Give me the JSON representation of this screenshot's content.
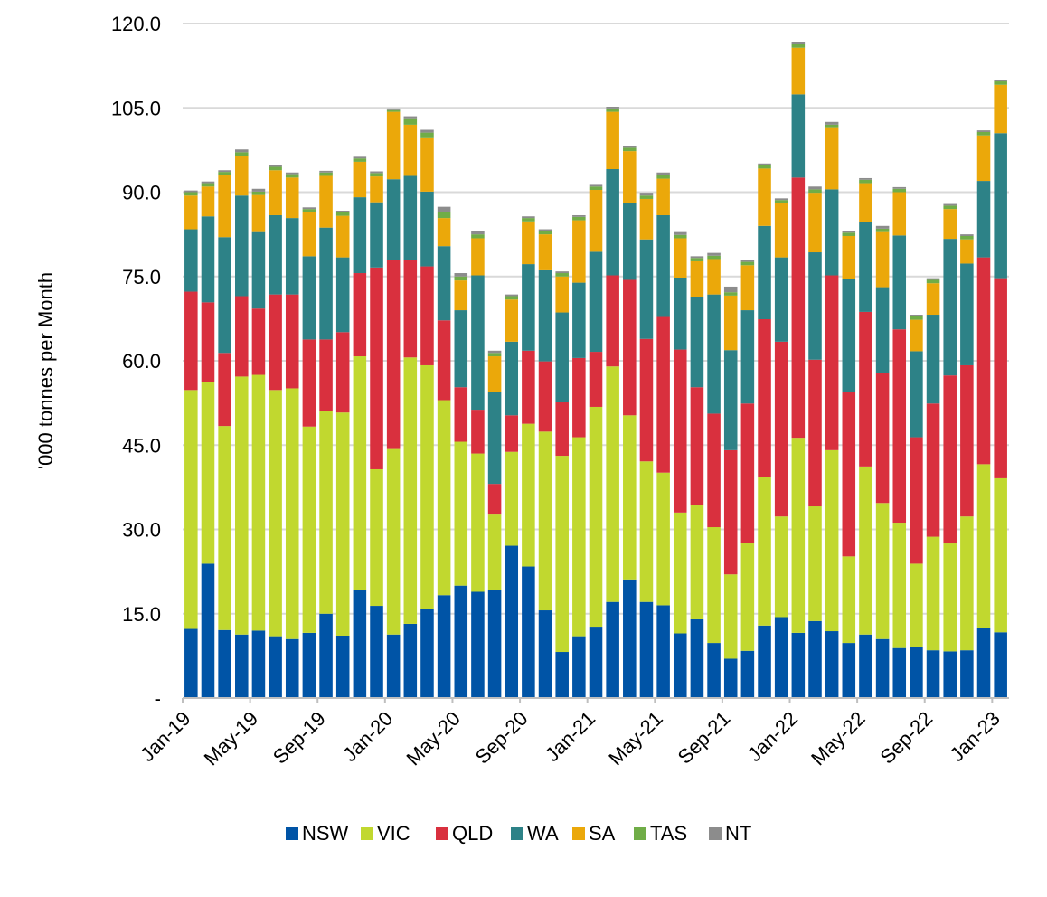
{
  "chart_data": {
    "type": "bar",
    "stacked": true,
    "title": "",
    "xlabel": "",
    "ylabel": "'000 tonnes per Month",
    "ylim": [
      0,
      120
    ],
    "y_ticks": [
      0,
      15,
      30,
      45,
      60,
      75,
      90,
      105,
      120
    ],
    "y_tick_labels": [
      "-",
      "15.0",
      "30.0",
      "45.0",
      "60.0",
      "75.0",
      "90.0",
      "105.0",
      "120.0"
    ],
    "grid": "horizontal",
    "legend_position": "bottom",
    "categories": [
      "Jan-19",
      "Feb-19",
      "Mar-19",
      "Apr-19",
      "May-19",
      "Jun-19",
      "Jul-19",
      "Aug-19",
      "Sep-19",
      "Oct-19",
      "Nov-19",
      "Dec-19",
      "Jan-20",
      "Feb-20",
      "Mar-20",
      "Apr-20",
      "May-20",
      "Jun-20",
      "Jul-20",
      "Aug-20",
      "Sep-20",
      "Oct-20",
      "Nov-20",
      "Dec-20",
      "Jan-21",
      "Feb-21",
      "Mar-21",
      "Apr-21",
      "May-21",
      "Jun-21",
      "Jul-21",
      "Aug-21",
      "Sep-21",
      "Oct-21",
      "Nov-21",
      "Dec-21",
      "Jan-22",
      "Feb-22",
      "Mar-22",
      "Apr-22",
      "May-22",
      "Jun-22",
      "Jul-22",
      "Aug-22",
      "Sep-22",
      "Oct-22",
      "Nov-22",
      "Dec-22",
      "Jan-23"
    ],
    "x_tick_labels": [
      "Jan-19",
      "May-19",
      "Sep-19",
      "Jan-20",
      "May-20",
      "Sep-20",
      "Jan-21",
      "May-21",
      "Sep-21",
      "Jan-22",
      "May-22",
      "Sep-22",
      "Jan-23"
    ],
    "series": [
      {
        "name": "NSW",
        "color": "#0054A6",
        "values": [
          12.3,
          23.9,
          12.1,
          11.3,
          12.0,
          11.0,
          10.5,
          11.6,
          15.0,
          11.1,
          19.2,
          16.4,
          11.3,
          13.2,
          15.9,
          18.3,
          20.0,
          18.9,
          19.2,
          27.1,
          23.4,
          15.6,
          8.2,
          11.0,
          12.7,
          17.1,
          21.1,
          17.1,
          16.5,
          11.5,
          14.0,
          9.8,
          7.0,
          8.4,
          12.9,
          14.4,
          11.6,
          13.7,
          11.9,
          9.8,
          11.3,
          10.5,
          8.9,
          9.1,
          8.5,
          8.3,
          8.5,
          12.5,
          11.7
        ]
      },
      {
        "name": "VIC",
        "color": "#C1D82F",
        "values": [
          42.5,
          32.4,
          36.3,
          45.9,
          45.5,
          43.8,
          44.6,
          36.7,
          36.0,
          39.7,
          41.6,
          24.3,
          33.0,
          47.4,
          43.3,
          34.7,
          25.6,
          24.6,
          13.6,
          16.7,
          25.4,
          31.8,
          34.9,
          35.4,
          39.1,
          41.9,
          29.2,
          25.0,
          23.6,
          21.5,
          20.3,
          20.6,
          15.0,
          19.2,
          26.4,
          17.9,
          34.7,
          20.4,
          32.2,
          15.4,
          29.9,
          24.2,
          22.3,
          14.8,
          20.2,
          19.2,
          23.8,
          29.1,
          27.4
        ]
      },
      {
        "name": "QLD",
        "color": "#D9303E",
        "values": [
          17.5,
          14.1,
          13.0,
          14.3,
          11.8,
          17.0,
          16.7,
          15.5,
          12.8,
          14.3,
          14.8,
          35.9,
          33.6,
          17.3,
          17.6,
          14.2,
          9.7,
          7.8,
          5.3,
          6.5,
          13.0,
          12.5,
          9.5,
          14.1,
          9.8,
          16.2,
          24.1,
          21.8,
          27.7,
          29.0,
          21.0,
          20.2,
          22.1,
          24.8,
          28.1,
          31.1,
          46.3,
          26.1,
          31.1,
          29.2,
          27.5,
          23.2,
          34.4,
          22.5,
          23.7,
          29.9,
          26.9,
          36.8,
          35.6
        ]
      },
      {
        "name": "WA",
        "color": "#2D8287",
        "values": [
          11.1,
          15.3,
          20.6,
          17.9,
          13.6,
          14.1,
          13.6,
          14.8,
          19.9,
          13.3,
          13.5,
          11.6,
          14.4,
          15.0,
          13.3,
          13.2,
          13.7,
          23.9,
          16.4,
          13.1,
          15.4,
          16.2,
          16.0,
          13.4,
          17.8,
          18.9,
          13.7,
          17.7,
          18.1,
          12.8,
          16.1,
          21.2,
          17.8,
          16.6,
          16.6,
          15.0,
          14.8,
          19.1,
          15.3,
          20.2,
          16.0,
          15.2,
          16.7,
          15.3,
          15.8,
          24.3,
          18.1,
          13.6,
          25.8
        ]
      },
      {
        "name": "SA",
        "color": "#EBA80A",
        "values": [
          6.0,
          5.3,
          11.0,
          7.0,
          6.6,
          8.0,
          7.2,
          7.8,
          9.2,
          7.4,
          6.3,
          4.6,
          12.0,
          9.1,
          9.5,
          5.0,
          5.3,
          6.6,
          6.3,
          7.5,
          7.6,
          6.4,
          6.4,
          11.1,
          11.0,
          10.2,
          9.2,
          7.2,
          6.5,
          7.0,
          6.3,
          6.3,
          9.7,
          8.0,
          10.2,
          9.6,
          8.3,
          10.6,
          10.9,
          7.6,
          6.9,
          9.8,
          7.7,
          5.6,
          5.6,
          5.3,
          4.3,
          8.1,
          8.6
        ]
      },
      {
        "name": "TAS",
        "color": "#70AD47",
        "values": [
          0.6,
          0.6,
          0.6,
          0.7,
          0.6,
          0.6,
          0.6,
          0.6,
          0.6,
          0.6,
          0.6,
          0.6,
          0.3,
          1.0,
          1.0,
          1.0,
          0.7,
          0.7,
          0.6,
          0.6,
          0.6,
          0.6,
          0.6,
          0.6,
          0.6,
          0.6,
          0.6,
          0.6,
          0.6,
          0.6,
          0.6,
          0.6,
          0.6,
          0.6,
          0.6,
          0.6,
          0.6,
          0.6,
          0.6,
          0.6,
          0.6,
          0.6,
          0.6,
          0.6,
          0.6,
          0.6,
          0.6,
          0.6,
          0.6
        ]
      },
      {
        "name": "NT",
        "color": "#8C8C8C",
        "values": [
          0.3,
          0.3,
          0.3,
          0.5,
          0.5,
          0.3,
          0.3,
          0.3,
          0.3,
          0.3,
          0.3,
          0.3,
          0.3,
          0.5,
          0.5,
          1.0,
          0.6,
          0.6,
          0.4,
          0.3,
          0.3,
          0.3,
          0.3,
          0.3,
          0.3,
          0.3,
          0.3,
          0.5,
          0.5,
          0.5,
          0.3,
          0.5,
          1.0,
          0.3,
          0.3,
          0.3,
          0.4,
          0.5,
          0.5,
          0.3,
          0.3,
          0.5,
          0.3,
          0.3,
          0.3,
          0.3,
          0.3,
          0.3,
          0.3
        ]
      }
    ]
  }
}
